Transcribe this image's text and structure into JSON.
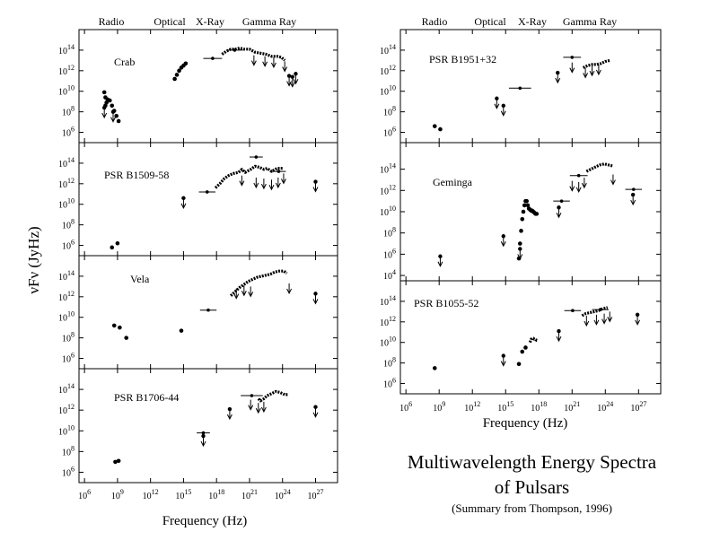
{
  "figure": {
    "title_line1": "Multiwavelength Energy Spectra",
    "title_line2": "of Pulsars",
    "subtitle": "(Summary from Thompson, 1996)",
    "ylabel": "νFν (JyHz)",
    "left_xlabel": "Frequency (Hz)",
    "right_xlabel": "Frequency (Hz)",
    "bands": [
      "Radio",
      "Optical",
      "X-Ray",
      "Gamma Ray"
    ],
    "x_tick_labels": [
      "10^6",
      "10^9",
      "10^12",
      "10^15",
      "10^18",
      "10^21",
      "10^24",
      "10^27"
    ],
    "x_tick_values": [
      6,
      9,
      12,
      15,
      18,
      21,
      24,
      27
    ]
  },
  "chart_data": [
    {
      "type": "scatter",
      "name": "Crab",
      "xscale": "log",
      "yscale": "log",
      "xlim_log": [
        5.5,
        29
      ],
      "ylim_log": [
        5,
        16
      ],
      "ytick_values": [
        6,
        8,
        10,
        12,
        14
      ],
      "ytick_labels": [
        "10^6",
        "10^8",
        "10^10",
        "10^12",
        "10^14"
      ],
      "points": [
        [
          7.8,
          9.9
        ],
        [
          7.9,
          9.4
        ],
        [
          8,
          8.9
        ],
        [
          7.9,
          8.6
        ],
        [
          8.1,
          9.2
        ],
        [
          8.3,
          9.1
        ],
        [
          8.5,
          8.6
        ],
        [
          8.7,
          8.1
        ],
        [
          8.9,
          7.6
        ],
        [
          9.1,
          7.1
        ],
        [
          14.2,
          11.2
        ],
        [
          14.4,
          11.6
        ],
        [
          14.6,
          12
        ],
        [
          14.8,
          12.3
        ],
        [
          15,
          12.5
        ],
        [
          15.2,
          12.7
        ]
      ],
      "limits": [
        [
          7.8,
          8.4
        ],
        [
          8.6,
          8
        ],
        [
          24.6,
          11.5
        ],
        [
          24.9,
          11.4
        ],
        [
          25.2,
          11.7
        ]
      ],
      "xbars": [
        [
          16.8,
          18.5,
          13.2
        ],
        [
          18.9,
          20.4,
          14
        ]
      ],
      "curve": [
        [
          18.5,
          13.6
        ],
        [
          18.9,
          13.9
        ],
        [
          19.3,
          14.1
        ],
        [
          19.7,
          14.1
        ],
        [
          20.1,
          14.2
        ],
        [
          20.5,
          14.1
        ],
        [
          21,
          14.1
        ],
        [
          21.5,
          13.8
        ],
        [
          22,
          13.7
        ],
        [
          22.5,
          13.6
        ],
        [
          23,
          13.4
        ],
        [
          23.5,
          13.4
        ],
        [
          23.9,
          13.3
        ],
        [
          24.2,
          13
        ]
      ],
      "arrows": [
        [
          21.4,
          13.5
        ],
        [
          22.4,
          13.4
        ],
        [
          23.2,
          13.3
        ],
        [
          24.2,
          12.9
        ]
      ]
    },
    {
      "type": "scatter",
      "name": "PSR B1509-58",
      "xscale": "log",
      "yscale": "log",
      "xlim_log": [
        5.5,
        29
      ],
      "ylim_log": [
        5,
        16
      ],
      "ytick_values": [
        6,
        8,
        10,
        12,
        14
      ],
      "ytick_labels": [
        "10^6",
        "10^8",
        "10^10",
        "10^12",
        "10^14"
      ],
      "points": [
        [
          8.5,
          5.8
        ],
        [
          9,
          6.2
        ]
      ],
      "limits": [
        [
          15,
          10.6
        ],
        [
          27,
          12.2
        ]
      ],
      "xbars": [
        [
          16.4,
          17.9,
          11.2
        ],
        [
          21,
          22.2,
          14.6
        ],
        [
          23,
          24.3,
          13.2
        ]
      ],
      "curve": [
        [
          17.9,
          11.6
        ],
        [
          18.3,
          12
        ],
        [
          18.7,
          12.5
        ],
        [
          19.1,
          12.8
        ],
        [
          19.5,
          13
        ],
        [
          20,
          13.1
        ],
        [
          20.3,
          13.4
        ],
        [
          20.6,
          13.1
        ],
        [
          21.1,
          13.4
        ],
        [
          21.5,
          13.7
        ],
        [
          21.9,
          13.6
        ],
        [
          22.3,
          13.4
        ],
        [
          22.6,
          13.5
        ],
        [
          23,
          13.2
        ],
        [
          23.5,
          13.5
        ],
        [
          24,
          13.5
        ]
      ],
      "arrows": [
        [
          20.3,
          12.8
        ],
        [
          21.6,
          12.6
        ],
        [
          22.3,
          12.5
        ],
        [
          23,
          12.4
        ],
        [
          23.6,
          12.6
        ],
        [
          24.1,
          13
        ]
      ]
    },
    {
      "type": "scatter",
      "name": "Vela",
      "xscale": "log",
      "yscale": "log",
      "xlim_log": [
        5.5,
        29
      ],
      "ylim_log": [
        5,
        16
      ],
      "ytick_values": [
        6,
        8,
        10,
        12,
        14
      ],
      "ytick_labels": [
        "10^6",
        "10^8",
        "10^10",
        "10^12",
        "10^14"
      ],
      "points": [
        [
          8.7,
          9.2
        ],
        [
          9.2,
          9
        ],
        [
          9.8,
          8
        ],
        [
          14.8,
          8.7
        ]
      ],
      "limits": [
        [
          27,
          12.3
        ]
      ],
      "xbars": [
        [
          16.5,
          18,
          10.7
        ]
      ],
      "curve": [
        [
          19.3,
          12.1
        ],
        [
          19.7,
          12.5
        ],
        [
          20.1,
          12.9
        ],
        [
          20.5,
          13.2
        ],
        [
          20.9,
          13.5
        ],
        [
          21.3,
          13.7
        ],
        [
          21.7,
          13.9
        ],
        [
          22.1,
          14
        ],
        [
          22.5,
          14.1
        ],
        [
          22.9,
          14.2
        ],
        [
          23.3,
          14.4
        ],
        [
          23.7,
          14.5
        ],
        [
          24.1,
          14.5
        ],
        [
          24.4,
          14.3
        ]
      ],
      "arrows": [
        [
          19.8,
          12.8
        ],
        [
          20.5,
          13.1
        ],
        [
          21.1,
          13
        ],
        [
          24.6,
          13.3
        ]
      ]
    },
    {
      "type": "scatter",
      "name": "PSR B1706-44",
      "xscale": "log",
      "yscale": "log",
      "xlim_log": [
        5.5,
        29
      ],
      "ylim_log": [
        5,
        16
      ],
      "ytick_values": [
        6,
        8,
        10,
        12,
        14
      ],
      "ytick_labels": [
        "10^6",
        "10^8",
        "10^10",
        "10^12",
        "10^14"
      ],
      "points": [
        [
          8.8,
          7
        ],
        [
          9.1,
          7.1
        ]
      ],
      "limits": [
        [
          16.8,
          9.5
        ],
        [
          19.2,
          12.1
        ],
        [
          27,
          12.3
        ]
      ],
      "xbars": [
        [
          16.2,
          17.4,
          9.8
        ],
        [
          20.2,
          22.2,
          13.4
        ]
      ],
      "curve": [
        [
          21.8,
          13.1
        ],
        [
          22,
          12.9
        ],
        [
          22.3,
          13.1
        ],
        [
          22.6,
          13.4
        ],
        [
          23,
          13.6
        ],
        [
          23.4,
          13.8
        ],
        [
          23.8,
          13.7
        ],
        [
          24.2,
          13.5
        ],
        [
          24.5,
          13.5
        ]
      ],
      "arrows": [
        [
          21.1,
          13
        ],
        [
          21.8,
          12.7
        ],
        [
          22.3,
          12.8
        ]
      ]
    },
    {
      "type": "scatter",
      "name": "PSR B1951+32",
      "xscale": "log",
      "yscale": "log",
      "xlim_log": [
        5.5,
        29
      ],
      "ylim_log": [
        5,
        16
      ],
      "ytick_values": [
        6,
        8,
        10,
        12,
        14
      ],
      "ytick_labels": [
        "10^6",
        "10^8",
        "10^10",
        "10^12",
        "10^14"
      ],
      "points": [
        [
          8.6,
          6.6
        ],
        [
          9.1,
          6.3
        ]
      ],
      "limits": [
        [
          14.2,
          9.3
        ],
        [
          14.8,
          8.6
        ],
        [
          19.7,
          11.8
        ]
      ],
      "xbars": [
        [
          15.3,
          17.3,
          10.3
        ],
        [
          20.2,
          21.8,
          13.3
        ]
      ],
      "curve": [
        [
          22,
          12.3
        ],
        [
          22.4,
          12.5
        ],
        [
          22.8,
          12.6
        ],
        [
          23.2,
          12.6
        ],
        [
          23.6,
          12.7
        ],
        [
          24,
          12.9
        ],
        [
          24.4,
          13
        ]
      ],
      "arrows": [
        [
          21,
          12.8
        ],
        [
          22.2,
          12.3
        ],
        [
          22.8,
          12.5
        ],
        [
          23.4,
          12.6
        ]
      ]
    },
    {
      "type": "scatter",
      "name": "Geminga",
      "xscale": "log",
      "yscale": "log",
      "xlim_log": [
        5.5,
        29
      ],
      "ylim_log": [
        3.5,
        16.5
      ],
      "ytick_values": [
        4,
        6,
        8,
        10,
        12,
        14
      ],
      "ytick_labels": [
        "10^4",
        "10^6",
        "10^8",
        "10^10",
        "10^12",
        "10^14"
      ],
      "points": [
        [
          16.2,
          5.6
        ],
        [
          16.3,
          7
        ],
        [
          16.4,
          8.2
        ],
        [
          16.5,
          9.3
        ],
        [
          16.6,
          10
        ],
        [
          16.7,
          10.6
        ],
        [
          16.8,
          11
        ],
        [
          16.9,
          11
        ],
        [
          17,
          10.6
        ],
        [
          17.1,
          10.3
        ],
        [
          17.2,
          10.2
        ],
        [
          17.3,
          10.1
        ],
        [
          17.4,
          10.1
        ],
        [
          17.5,
          10
        ],
        [
          17.6,
          9.9
        ],
        [
          17.7,
          9.8
        ],
        [
          17.8,
          9.8
        ]
      ],
      "limits": [
        [
          9.1,
          5.8
        ],
        [
          14.8,
          7.7
        ],
        [
          16.3,
          6.5
        ],
        [
          19.8,
          10.4
        ],
        [
          26.5,
          11.6
        ]
      ],
      "xbars": [
        [
          19.3,
          20.8,
          11
        ],
        [
          20.8,
          22.4,
          13.4
        ],
        [
          25.8,
          27.3,
          12.1
        ]
      ],
      "curve": [
        [
          22.3,
          13.8
        ],
        [
          22.7,
          14
        ],
        [
          23.1,
          14.2
        ],
        [
          23.5,
          14.4
        ],
        [
          23.9,
          14.5
        ],
        [
          24.3,
          14.4
        ],
        [
          24.7,
          14.3
        ]
      ],
      "arrows": [
        [
          21,
          12.9
        ],
        [
          21.6,
          12.8
        ],
        [
          22.1,
          13.2
        ],
        [
          24.7,
          13.5
        ]
      ]
    },
    {
      "type": "scatter",
      "name": "PSR B1055-52",
      "xscale": "log",
      "yscale": "log",
      "xlim_log": [
        5.5,
        29
      ],
      "ylim_log": [
        5,
        16
      ],
      "ytick_values": [
        6,
        8,
        10,
        12,
        14
      ],
      "ytick_labels": [
        "10^6",
        "10^8",
        "10^10",
        "10^12",
        "10^14"
      ],
      "points": [
        [
          8.6,
          7.5
        ],
        [
          16.2,
          7.9
        ],
        [
          16.5,
          9.1
        ],
        [
          16.8,
          9.5
        ]
      ],
      "limits": [
        [
          14.8,
          8.7
        ],
        [
          19.8,
          11.1
        ],
        [
          26.9,
          12.7
        ]
      ],
      "xbars": [
        [
          20.3,
          21.8,
          13.1
        ],
        [
          22.8,
          24.3,
          13.2
        ]
      ],
      "curve": [
        [
          17.2,
          10
        ],
        [
          17.3,
          10.3
        ],
        [
          17.4,
          10.4
        ],
        [
          17.5,
          10.4
        ],
        [
          17.6,
          10.3
        ],
        [
          17.7,
          10.3
        ],
        [
          17.8,
          10.2
        ],
        [
          17.9,
          10.2
        ]
      ],
      "curve2": [
        [
          21.9,
          12.6
        ],
        [
          22.2,
          12.8
        ],
        [
          22.6,
          12.9
        ],
        [
          23,
          13
        ],
        [
          23.4,
          13.1
        ],
        [
          23.8,
          13.3
        ],
        [
          24.2,
          13.4
        ]
      ],
      "arrows": [
        [
          22.3,
          12.6
        ],
        [
          23.2,
          12.7
        ],
        [
          23.9,
          12.8
        ],
        [
          24.4,
          13
        ]
      ]
    }
  ]
}
